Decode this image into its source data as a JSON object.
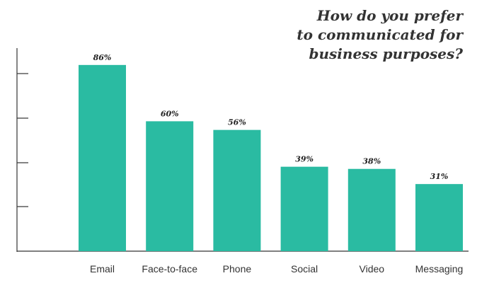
{
  "chart_data": {
    "type": "bar",
    "title": [
      "How do you prefer",
      "to communicated for",
      "business purposes?"
    ],
    "categories": [
      "Email",
      "Face-to-face",
      "Phone",
      "Social",
      "Video",
      "Messaging"
    ],
    "values": [
      86,
      60,
      56,
      39,
      38,
      31
    ],
    "value_labels": [
      "86%",
      "60%",
      "56%",
      "39%",
      "38%",
      "31%"
    ],
    "ylim": [
      0,
      100
    ],
    "grid": false,
    "bar_color": "#2abba2",
    "axis_color": "#333333"
  }
}
